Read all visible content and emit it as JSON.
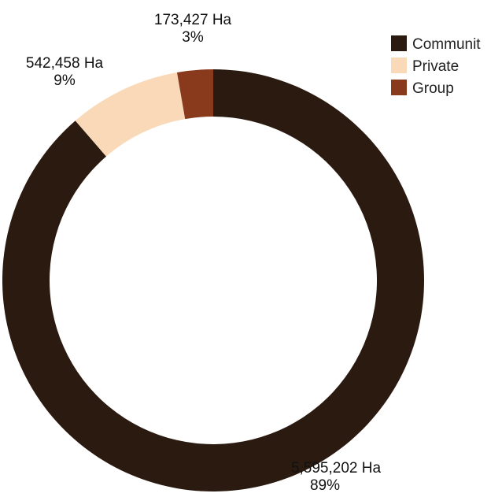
{
  "chart_data": {
    "type": "pie",
    "style": "donut",
    "categories": [
      "Community",
      "Private",
      "Group"
    ],
    "values": [
      5595202,
      542458,
      173427
    ],
    "units": "Ha",
    "percent_labels": [
      "89%",
      "9%",
      "3%"
    ],
    "value_labels": [
      "5,595,202 Ha",
      "542,458 Ha",
      "173,427 Ha"
    ],
    "colors": [
      "#2a1a10",
      "#f9d9b7",
      "#8a3a1c"
    ],
    "legend": {
      "placement": "top-right",
      "entries": [
        "Communit",
        "Private",
        "Group"
      ]
    },
    "title": ""
  }
}
